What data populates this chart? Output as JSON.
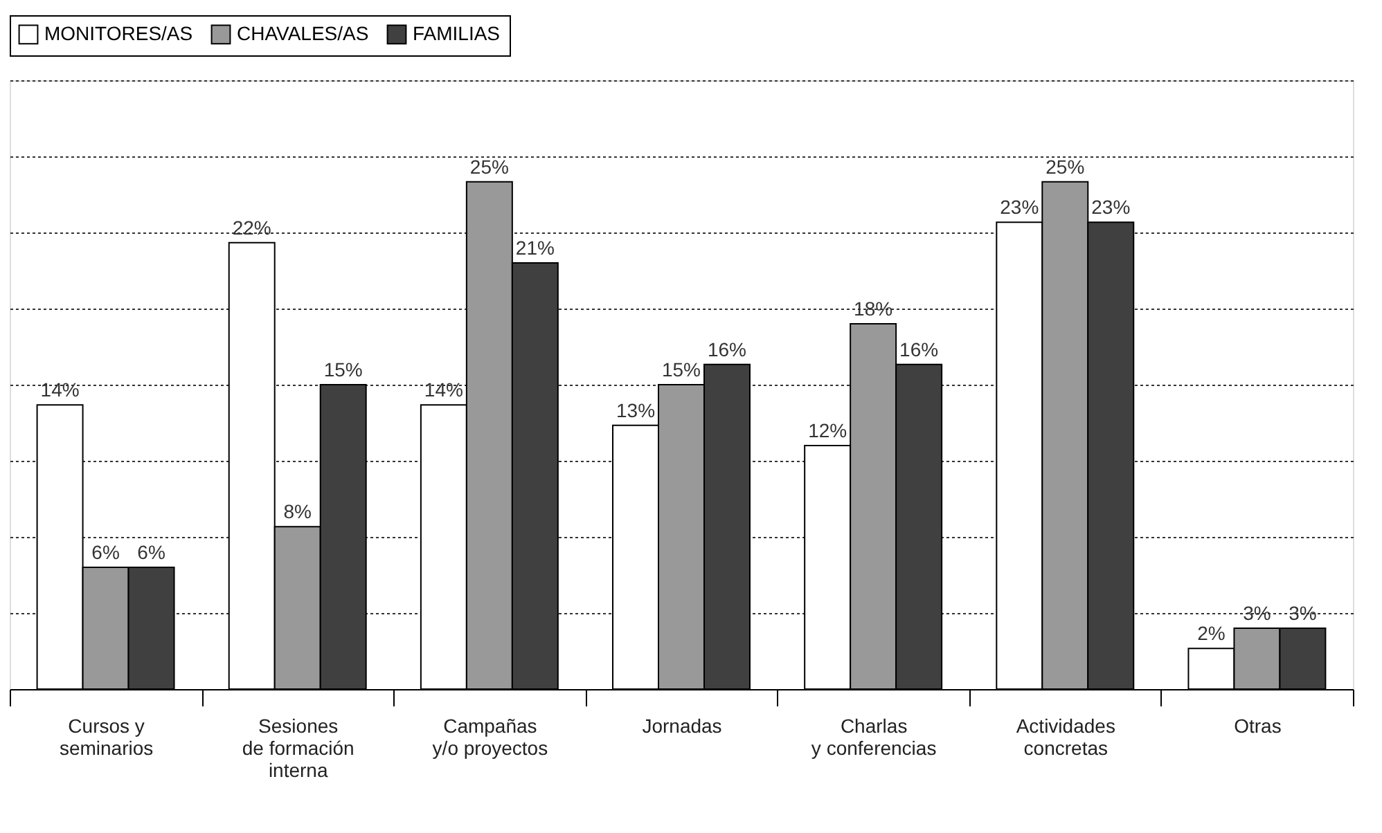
{
  "chart_data": {
    "type": "bar",
    "categories": [
      "Cursos y\nseminarios",
      "Sesiones\nde formación\ninterna",
      "Campañas\ny/o proyectos",
      "Jornadas",
      "Charlas\ny conferencias",
      "Actividades\nconcretas",
      "Otras"
    ],
    "series": [
      {
        "name": "MONITORES/AS",
        "color": "#ffffff",
        "values": [
          14,
          22,
          14,
          13,
          12,
          23,
          2
        ],
        "value_labels": [
          "14%",
          "22%",
          "14%",
          "13%",
          "12%",
          "23%",
          "2%"
        ]
      },
      {
        "name": "CHAVALES/AS",
        "color": "#999999",
        "values": [
          6,
          8,
          25,
          15,
          18,
          25,
          3
        ],
        "value_labels": [
          "6%",
          "8%",
          "25%",
          "15%",
          "18%",
          "25%",
          "3%"
        ]
      },
      {
        "name": "FAMILIAS",
        "color": "#404040",
        "values": [
          6,
          15,
          21,
          16,
          16,
          23,
          3
        ],
        "value_labels": [
          "6%",
          "15%",
          "21%",
          "16%",
          "16%",
          "23%",
          "3%"
        ]
      }
    ],
    "ylim": [
      0,
      30
    ],
    "yticks": [
      {
        "value": 0,
        "label": null
      },
      {
        "value": 3.75,
        "label": null
      },
      {
        "value": 7.5,
        "label": null
      },
      {
        "value": 11.25,
        "label": null
      },
      {
        "value": 15,
        "label": null
      },
      {
        "value": 18.75,
        "label": null
      },
      {
        "value": 22.5,
        "label": null
      },
      {
        "value": 26.25,
        "label": null
      },
      {
        "value": 30,
        "label": null
      }
    ],
    "grid": "y",
    "legend": "top",
    "tick_labels": "x"
  }
}
